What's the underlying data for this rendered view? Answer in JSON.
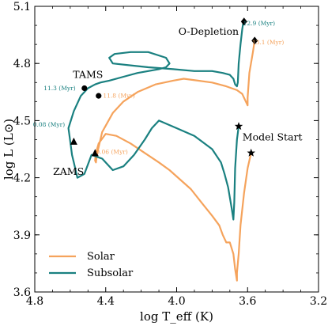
{
  "chart_data": {
    "type": "line",
    "title": "",
    "xlabel": "log T_eff (K)",
    "ylabel": "log L (L⊙)",
    "xlim": [
      4.8,
      3.2
    ],
    "ylim": [
      3.6,
      5.1
    ],
    "x_reversed": true,
    "xticks": [
      "4.8",
      "4.4",
      "4.0",
      "3.6",
      "3.2"
    ],
    "yticks": [
      "3.6",
      "3.9",
      "4.2",
      "4.5",
      "4.8",
      "5.1"
    ],
    "grid": false,
    "legend": "bottom-left",
    "series": [
      {
        "name": "Solar",
        "color": "#f5a35c",
        "x": [
          3.58,
          3.6,
          3.62,
          3.64,
          3.65,
          3.66,
          3.66,
          3.67,
          3.68,
          3.7,
          3.72,
          3.74,
          3.76,
          3.8,
          3.86,
          3.92,
          3.98,
          4.04,
          4.1,
          4.18,
          4.26,
          4.34,
          4.4,
          4.44,
          4.455,
          4.46,
          4.455,
          4.45,
          4.42,
          4.36,
          4.3,
          4.22,
          4.12,
          4.02,
          3.96,
          3.88,
          3.8,
          3.72,
          3.66,
          3.63,
          3.61,
          3.6,
          3.6,
          3.59,
          3.57,
          3.56
        ],
        "y": [
          4.33,
          4.25,
          4.12,
          3.95,
          3.8,
          3.7,
          3.66,
          3.72,
          3.8,
          3.86,
          3.86,
          3.9,
          3.95,
          4.0,
          4.07,
          4.14,
          4.19,
          4.24,
          4.28,
          4.33,
          4.38,
          4.42,
          4.43,
          4.38,
          4.33,
          4.29,
          4.28,
          4.32,
          4.44,
          4.54,
          4.6,
          4.65,
          4.69,
          4.71,
          4.72,
          4.71,
          4.7,
          4.68,
          4.66,
          4.64,
          4.6,
          4.58,
          4.62,
          4.75,
          4.86,
          4.92
        ]
      },
      {
        "name": "Subsolar",
        "color": "#1a8080",
        "x": [
          3.65,
          3.66,
          3.67,
          3.675,
          3.68,
          3.69,
          3.71,
          3.73,
          3.75,
          3.8,
          3.9,
          4.0,
          4.1,
          4.14,
          4.18,
          4.24,
          4.3,
          4.36,
          4.42,
          4.48,
          4.52,
          4.56,
          4.58,
          4.59,
          4.6,
          4.61,
          4.58,
          4.54,
          4.5,
          4.46,
          4.43,
          4.38,
          4.3,
          4.22,
          4.16,
          4.1,
          4.06,
          4.04,
          4.06,
          4.16,
          4.26,
          4.35,
          4.38,
          4.36,
          4.26,
          4.16,
          4.02,
          3.9,
          3.8,
          3.74,
          3.7,
          3.68,
          3.67,
          3.66,
          3.655,
          3.65,
          3.64,
          3.63,
          3.625,
          3.62
        ],
        "y": [
          4.47,
          4.4,
          4.25,
          4.07,
          3.98,
          4.04,
          4.15,
          4.22,
          4.28,
          4.35,
          4.42,
          4.46,
          4.5,
          4.46,
          4.4,
          4.32,
          4.26,
          4.24,
          4.3,
          4.32,
          4.22,
          4.2,
          4.28,
          4.32,
          4.39,
          4.46,
          4.55,
          4.63,
          4.67,
          4.69,
          4.7,
          4.71,
          4.73,
          4.75,
          4.76,
          4.77,
          4.78,
          4.8,
          4.83,
          4.86,
          4.86,
          4.85,
          4.83,
          4.8,
          4.79,
          4.78,
          4.77,
          4.76,
          4.76,
          4.75,
          4.74,
          4.72,
          4.69,
          4.68,
          4.7,
          4.8,
          4.9,
          4.98,
          5.01,
          5.02
        ]
      }
    ],
    "markers": [
      {
        "label": "Model Start",
        "symbol": "star",
        "x": 3.65,
        "y": 4.47,
        "series": "Subsolar"
      },
      {
        "label": "Model Start",
        "symbol": "star",
        "x": 3.58,
        "y": 4.33,
        "series": "Solar"
      },
      {
        "label": "ZAMS",
        "symbol": "triangle",
        "x": 4.58,
        "y": 4.39,
        "series": "Subsolar"
      },
      {
        "label": "ZAMS",
        "symbol": "triangle",
        "x": 4.46,
        "y": 4.33,
        "series": "Solar"
      },
      {
        "label": "TAMS",
        "symbol": "circle",
        "x": 4.52,
        "y": 4.67,
        "series": "Subsolar"
      },
      {
        "label": "TAMS",
        "symbol": "circle",
        "x": 4.44,
        "y": 4.63,
        "series": "Solar"
      },
      {
        "label": "O-Depletion",
        "symbol": "diamond",
        "x": 3.62,
        "y": 5.02,
        "series": "Subsolar"
      },
      {
        "label": "O-Depletion",
        "symbol": "diamond",
        "x": 3.56,
        "y": 4.92,
        "series": "Solar"
      }
    ],
    "annotations": [
      {
        "text": "O-Depletion",
        "x": 3.82,
        "y": 4.95
      },
      {
        "text": "TAMS",
        "x": 4.5,
        "y": 4.725
      },
      {
        "text": "Model Start",
        "x": 3.46,
        "y": 4.395
      },
      {
        "text": "ZAMS",
        "x": 4.61,
        "y": 4.215
      }
    ],
    "age_labels": [
      {
        "text": "12.9 (Myr)",
        "x": 3.535,
        "y": 5.0,
        "series": "Subsolar"
      },
      {
        "text": "13.1 (Myr)",
        "x": 3.485,
        "y": 4.9,
        "series": "Solar"
      },
      {
        "text": "11.3 (Myr)",
        "x": 4.66,
        "y": 4.66,
        "series": "Subsolar"
      },
      {
        "text": "11.8 (Myr)",
        "x": 4.325,
        "y": 4.62,
        "series": "Solar"
      },
      {
        "text": "0.08 (Myr)",
        "x": 4.72,
        "y": 4.468,
        "series": "Subsolar"
      },
      {
        "text": "0.06 (Myr)",
        "x": 4.365,
        "y": 4.325,
        "series": "Solar"
      }
    ]
  }
}
